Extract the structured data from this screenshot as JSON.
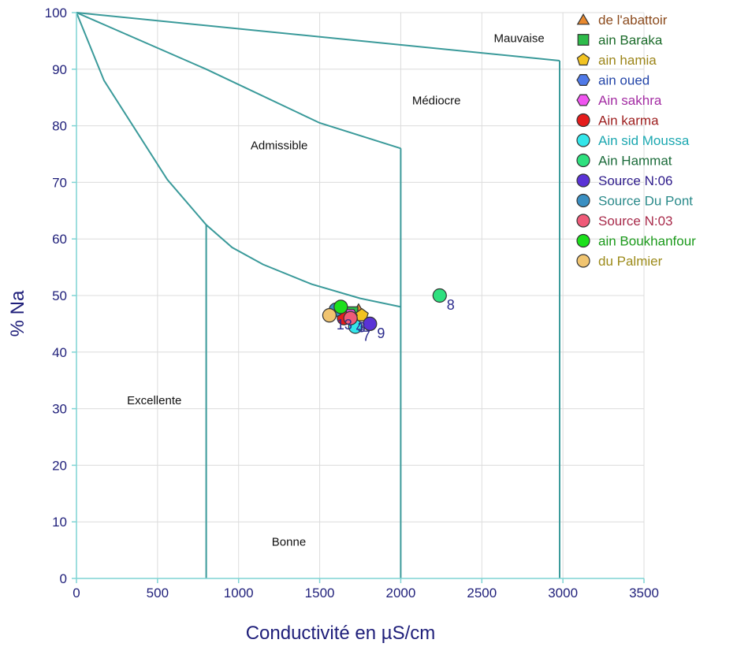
{
  "chart_data": {
    "type": "scatter",
    "title": "",
    "xlabel": "Conductivité en µS/cm",
    "ylabel": "% Na",
    "xlim": [
      0,
      3500
    ],
    "ylim": [
      0,
      100
    ],
    "xticks": [
      0,
      500,
      1000,
      1500,
      2000,
      2500,
      3000,
      3500
    ],
    "yticks": [
      0,
      10,
      20,
      30,
      40,
      50,
      60,
      70,
      80,
      90,
      100
    ],
    "grid": true,
    "legend_position": "top-right",
    "zones": [
      {
        "label": "Excellente",
        "x": 480,
        "y": 31.5
      },
      {
        "label": "Bonne",
        "x": 1310,
        "y": 6.5
      },
      {
        "label": "Admissible",
        "x": 1250,
        "y": 76.5
      },
      {
        "label": "Médiocre",
        "x": 2220,
        "y": 84.5
      },
      {
        "label": "Mauvaise",
        "x": 2730,
        "y": 95.5
      }
    ],
    "boundaries": [
      {
        "name": "excellente-bonne",
        "points": [
          [
            0,
            100
          ],
          [
            170,
            88
          ],
          [
            560,
            70.5
          ],
          [
            800,
            62.5
          ],
          [
            960,
            58.5
          ],
          [
            1150,
            55.5
          ],
          [
            1450,
            52
          ],
          [
            1750,
            49.5
          ],
          [
            2000,
            48
          ]
        ]
      },
      {
        "name": "bonne-vertical",
        "points": [
          [
            800,
            62.5
          ],
          [
            800,
            0
          ]
        ]
      },
      {
        "name": "admissible-mediocre",
        "points": [
          [
            0,
            100
          ],
          [
            800,
            90
          ],
          [
            1500,
            80.5
          ],
          [
            2000,
            76
          ]
        ]
      },
      {
        "name": "mediocre-vertical",
        "points": [
          [
            2000,
            76
          ],
          [
            2000,
            0
          ]
        ]
      },
      {
        "name": "mediocre-mauvaise",
        "points": [
          [
            0,
            100
          ],
          [
            2980,
            91.5
          ]
        ]
      },
      {
        "name": "mauvaise-vertical",
        "points": [
          [
            2980,
            91.5
          ],
          [
            2980,
            0
          ]
        ]
      }
    ],
    "series": [
      {
        "name": "de l'abattoir",
        "marker": "triangle",
        "color": "#e8892f",
        "text_color": "#8b4a1c",
        "x": 1740,
        "y": 47.5,
        "label": ""
      },
      {
        "name": "ain Baraka",
        "marker": "square",
        "color": "#2dbb4a",
        "text_color": "#1b6b2a",
        "x": 1700,
        "y": 47,
        "label": ""
      },
      {
        "name": "ain hamia",
        "marker": "pentagon",
        "color": "#f2c321",
        "text_color": "#9c8519",
        "x": 1760,
        "y": 46.5,
        "label": ""
      },
      {
        "name": "ain oued",
        "marker": "hexagon",
        "color": "#4f79e8",
        "text_color": "#2345a8",
        "x": 1680,
        "y": 46,
        "label": "4"
      },
      {
        "name": "Ain sakhra",
        "marker": "hexagon",
        "color": "#f054f0",
        "text_color": "#a32ca3",
        "x": 1690,
        "y": 46.5,
        "label": ""
      },
      {
        "name": "Ain karma",
        "marker": "circle",
        "color": "#e51c1c",
        "text_color": "#9c1c1c",
        "x": 1650,
        "y": 46,
        "label": ""
      },
      {
        "name": "Ain sid Moussa",
        "marker": "circle",
        "color": "#33e6ea",
        "text_color": "#1aa7b0",
        "x": 1720,
        "y": 44.5,
        "label": "7"
      },
      {
        "name": "Ain Hammat",
        "marker": "circle",
        "color": "#2ee07e",
        "text_color": "#1b6b3a",
        "x": 2240,
        "y": 50,
        "label": "8"
      },
      {
        "name": "Source N:06",
        "marker": "circle",
        "color": "#5a33d6",
        "text_color": "#2d1a8a",
        "x": 1810,
        "y": 45,
        "label": "9"
      },
      {
        "name": "Source Du Pont",
        "marker": "circle",
        "color": "#3a8fc2",
        "text_color": "#2a8a8a",
        "x": 1600,
        "y": 47.5,
        "label": ""
      },
      {
        "name": "Source N:03",
        "marker": "circle",
        "color": "#ef5a78",
        "text_color": "#a82a4a",
        "x": 1690,
        "y": 46,
        "label": "3"
      },
      {
        "name": "ain Boukhanfour",
        "marker": "circle",
        "color": "#1ce01c",
        "text_color": "#1c9a1c",
        "x": 1630,
        "y": 48,
        "label": ""
      },
      {
        "name": "du Palmier",
        "marker": "circle",
        "color": "#f0c470",
        "text_color": "#9c8a19",
        "x": 1560,
        "y": 46.5,
        "label": "13"
      }
    ]
  }
}
